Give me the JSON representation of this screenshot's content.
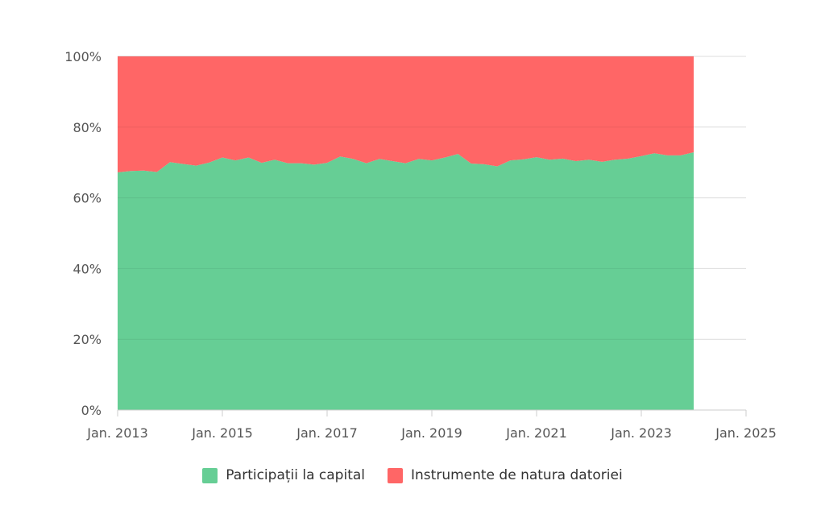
{
  "chart_data": {
    "type": "area",
    "stacked": "percent",
    "x_label_ticks": [
      "Jan. 2013",
      "Jan. 2015",
      "Jan. 2017",
      "Jan. 2019",
      "Jan. 2021",
      "Jan. 2023",
      "Jan. 2025"
    ],
    "y_ticks": [
      "0%",
      "20%",
      "40%",
      "60%",
      "80%",
      "100%"
    ],
    "ylim": [
      0,
      100
    ],
    "xlim": [
      "2013-01",
      "2025-01"
    ],
    "grid": true,
    "legend_position": "bottom",
    "x": [
      "2013-01",
      "2013-04",
      "2013-07",
      "2013-10",
      "2014-01",
      "2014-04",
      "2014-07",
      "2014-10",
      "2015-01",
      "2015-04",
      "2015-07",
      "2015-10",
      "2016-01",
      "2016-04",
      "2016-07",
      "2016-10",
      "2017-01",
      "2017-04",
      "2017-07",
      "2017-10",
      "2018-01",
      "2018-04",
      "2018-07",
      "2018-10",
      "2019-01",
      "2019-04",
      "2019-07",
      "2019-10",
      "2020-01",
      "2020-04",
      "2020-07",
      "2020-10",
      "2021-01",
      "2021-04",
      "2021-07",
      "2021-10",
      "2022-01",
      "2022-04",
      "2022-07",
      "2022-10",
      "2023-01",
      "2023-04",
      "2023-07",
      "2023-10",
      "2024-01"
    ],
    "series": [
      {
        "name": "Participații la capital",
        "color": "#66CE95",
        "values": [
          67.2,
          67.6,
          67.7,
          67.3,
          70.1,
          69.6,
          69.1,
          70.0,
          71.4,
          70.6,
          71.4,
          69.9,
          70.8,
          69.8,
          69.8,
          69.4,
          69.9,
          71.7,
          71.0,
          69.8,
          71.0,
          70.4,
          69.8,
          71.0,
          70.6,
          71.4,
          72.4,
          69.7,
          69.5,
          68.9,
          70.6,
          70.9,
          71.5,
          70.8,
          71.1,
          70.4,
          70.8,
          70.2,
          70.8,
          71.1,
          71.8,
          72.6,
          72.0,
          72.0,
          72.9
        ]
      },
      {
        "name": "Instrumente de natura datoriei",
        "color": "#FF6666",
        "values": [
          32.8,
          32.4,
          32.3,
          32.7,
          29.9,
          30.4,
          30.9,
          30.0,
          28.6,
          29.4,
          28.6,
          30.1,
          29.2,
          30.2,
          30.2,
          30.6,
          30.1,
          28.3,
          29.0,
          30.2,
          29.0,
          29.6,
          30.2,
          29.0,
          29.4,
          28.6,
          27.6,
          30.3,
          30.5,
          31.1,
          29.4,
          29.1,
          28.5,
          29.2,
          28.9,
          29.6,
          29.2,
          29.8,
          29.2,
          28.9,
          28.2,
          27.4,
          28.0,
          28.0,
          27.1
        ]
      }
    ]
  }
}
